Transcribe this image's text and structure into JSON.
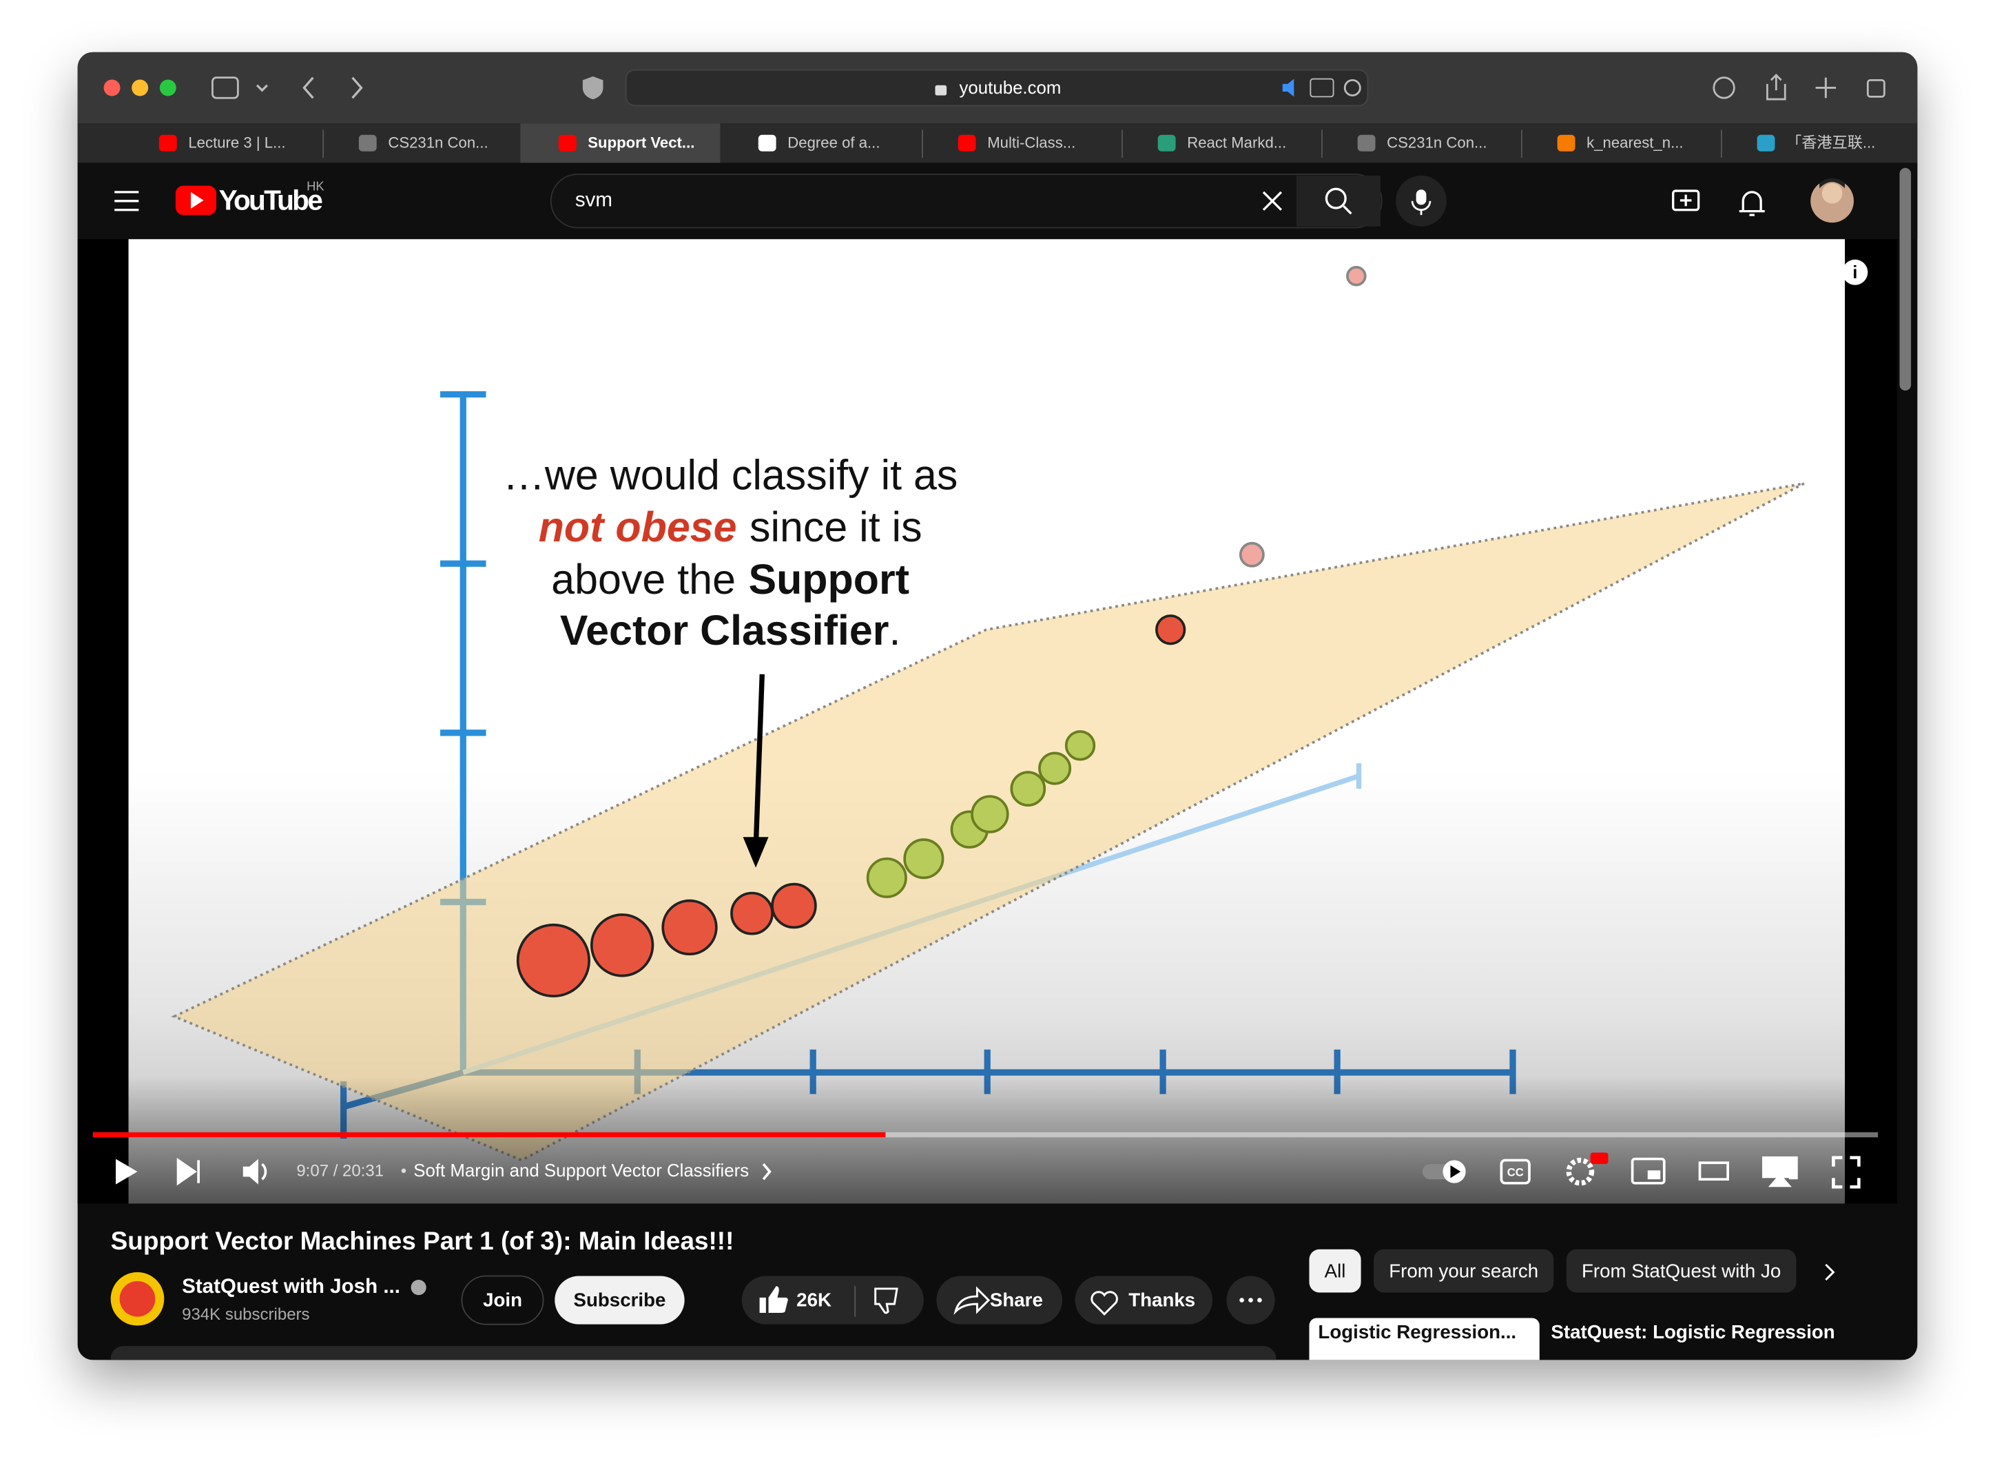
{
  "browser": {
    "url": "youtube.com",
    "tabs": [
      "Lecture 3 | L...",
      "CS231n Con...",
      "Support Vect...",
      "Degree of a...",
      "Multi-Class...",
      "React Markd...",
      "CS231n Con...",
      "k_nearest_n...",
      "「香港互联..."
    ]
  },
  "youtube": {
    "logo": "YouTube",
    "region": "HK",
    "search": "svm"
  },
  "video": {
    "caption": [
      "…we would classify it as",
      "not obese",
      "since it is",
      "above the",
      "Support",
      "Vector Classifier",
      "."
    ],
    "time": "9:07 / 20:31",
    "chapter": "Soft Margin and Support Vector Classifiers"
  },
  "title": "Support Vector Machines Part 1 (of 3): Main Ideas!!!",
  "channel": {
    "name": "StatQuest with Josh ...",
    "subscribers": "934K subscribers"
  },
  "actions": {
    "join": "Join",
    "subscribe": "Subscribe",
    "likes": "26K",
    "share": "Share",
    "thanks": "Thanks"
  },
  "filters": [
    "All",
    "From your search",
    "From StatQuest with Jo"
  ],
  "recommended": {
    "thumbnail_text": "Logistic Regression...",
    "title": "StatQuest: Logistic Regression"
  }
}
